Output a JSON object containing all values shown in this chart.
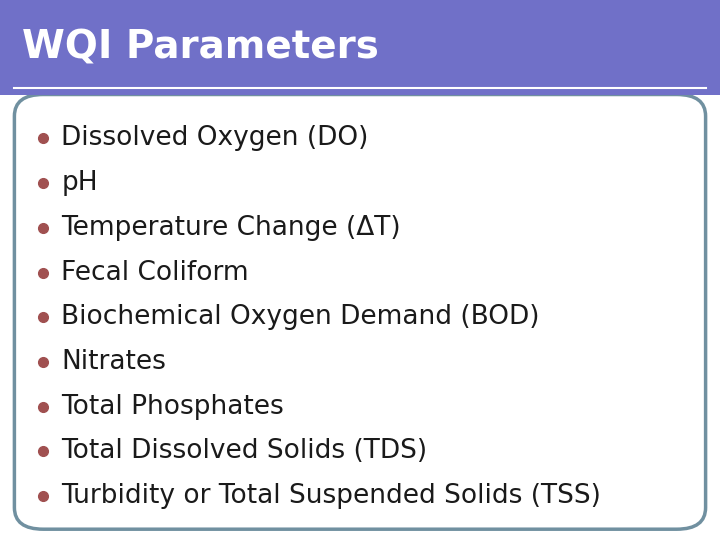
{
  "title": "WQI Parameters",
  "title_bg_color": "#7070C8",
  "title_text_color": "#FFFFFF",
  "title_fontsize": 28,
  "bullet_color": "#A05050",
  "bullet_text_color": "#1a1a1a",
  "bullet_fontsize": 19,
  "items": [
    "Dissolved Oxygen (DO)",
    "pH",
    "Temperature Change (ΔT)",
    "Fecal Coliform",
    "Biochemical Oxygen Demand (BOD)",
    "Nitrates",
    "Total Phosphates",
    "Total Dissolved Solids (TDS)",
    "Turbidity or Total Suspended Solids (TSS)"
  ],
  "background_color": "#FFFFFF",
  "border_color": "#7090A0",
  "box_bg_color": "#FFFFFF",
  "fig_width": 7.2,
  "fig_height": 5.4
}
